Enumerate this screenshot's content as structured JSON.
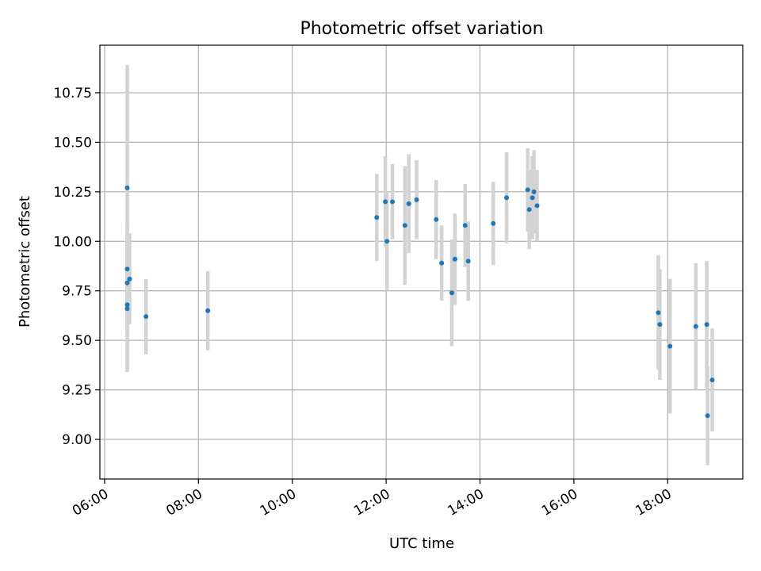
{
  "chart_data": {
    "type": "scatter",
    "title": "Photometric offset variation",
    "xlabel": "UTC time",
    "ylabel": "Photometric offset",
    "x_unit": "hours UTC",
    "xlim": [
      "05:54",
      "19:36"
    ],
    "ylim": [
      8.8,
      10.99
    ],
    "x_tick_labels": [
      "06:00",
      "08:00",
      "10:00",
      "12:00",
      "14:00",
      "16:00",
      "18:00"
    ],
    "y_tick_labels": [
      "9.00",
      "9.25",
      "9.50",
      "9.75",
      "10.00",
      "10.25",
      "10.50",
      "10.75"
    ],
    "grid": true,
    "marker_color": "#1f77b4",
    "errorbar_color": "#d3d3d3",
    "points": [
      {
        "x": "06:29",
        "y": 10.27,
        "err": 0.62
      },
      {
        "x": "06:29",
        "y": 9.86,
        "err": 0.24
      },
      {
        "x": "06:29",
        "y": 9.79,
        "err": 0.21
      },
      {
        "x": "06:29",
        "y": 9.68,
        "err": 0.34
      },
      {
        "x": "06:29",
        "y": 9.66,
        "err": 0.31
      },
      {
        "x": "06:32",
        "y": 9.81,
        "err": 0.23
      },
      {
        "x": "06:53",
        "y": 9.62,
        "err": 0.19
      },
      {
        "x": "08:12",
        "y": 9.65,
        "err": 0.2
      },
      {
        "x": "11:48",
        "y": 10.12,
        "err": 0.22
      },
      {
        "x": "11:59",
        "y": 10.2,
        "err": 0.23
      },
      {
        "x": "12:01",
        "y": 10.0,
        "err": 0.25
      },
      {
        "x": "12:08",
        "y": 10.2,
        "err": 0.19
      },
      {
        "x": "12:24",
        "y": 10.08,
        "err": 0.3
      },
      {
        "x": "12:29",
        "y": 10.19,
        "err": 0.25
      },
      {
        "x": "12:39",
        "y": 10.21,
        "err": 0.2
      },
      {
        "x": "13:04",
        "y": 10.11,
        "err": 0.2
      },
      {
        "x": "13:11",
        "y": 9.89,
        "err": 0.19
      },
      {
        "x": "13:24",
        "y": 9.74,
        "err": 0.27
      },
      {
        "x": "13:28",
        "y": 9.91,
        "err": 0.23
      },
      {
        "x": "13:41",
        "y": 10.08,
        "err": 0.21
      },
      {
        "x": "13:45",
        "y": 9.9,
        "err": 0.2
      },
      {
        "x": "14:17",
        "y": 10.09,
        "err": 0.21
      },
      {
        "x": "14:34",
        "y": 10.22,
        "err": 0.23
      },
      {
        "x": "15:01",
        "y": 10.26,
        "err": 0.21
      },
      {
        "x": "15:03",
        "y": 10.16,
        "err": 0.2
      },
      {
        "x": "15:07",
        "y": 10.22,
        "err": 0.21
      },
      {
        "x": "15:09",
        "y": 10.25,
        "err": 0.21
      },
      {
        "x": "15:13",
        "y": 10.18,
        "err": 0.18
      },
      {
        "x": "17:48",
        "y": 9.64,
        "err": 0.29
      },
      {
        "x": "17:50",
        "y": 9.58,
        "err": 0.28
      },
      {
        "x": "18:03",
        "y": 9.47,
        "err": 0.34
      },
      {
        "x": "18:36",
        "y": 9.57,
        "err": 0.32
      },
      {
        "x": "18:50",
        "y": 9.58,
        "err": 0.32
      },
      {
        "x": "18:51",
        "y": 9.12,
        "err": 0.25
      },
      {
        "x": "18:57",
        "y": 9.3,
        "err": 0.26
      }
    ]
  }
}
